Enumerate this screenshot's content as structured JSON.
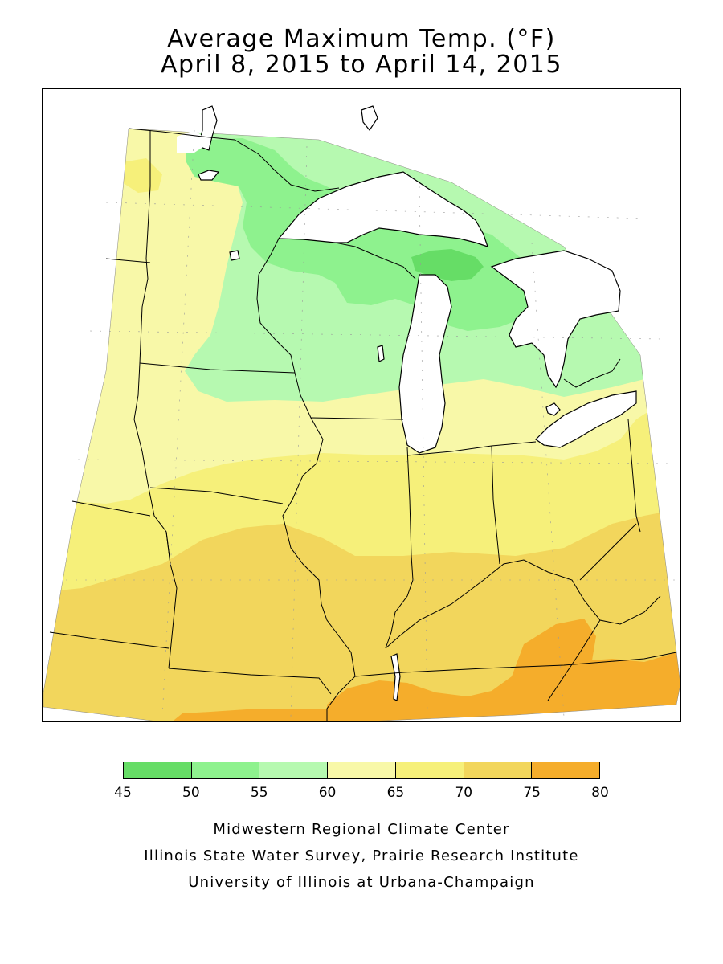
{
  "title": {
    "line1": "Average Maximum Temp. (°F)",
    "line2": "April 8, 2015 to April 14, 2015"
  },
  "legend": {
    "ticks": [
      "45",
      "50",
      "55",
      "60",
      "65",
      "70",
      "75",
      "80"
    ],
    "bins": [
      {
        "range": [
          45,
          50
        ],
        "color": "#66dd66"
      },
      {
        "range": [
          50,
          55
        ],
        "color": "#8ef28e"
      },
      {
        "range": [
          55,
          60
        ],
        "color": "#b6f9b0"
      },
      {
        "range": [
          60,
          65
        ],
        "color": "#f8f8a8"
      },
      {
        "range": [
          65,
          70
        ],
        "color": "#f6f07a"
      },
      {
        "range": [
          70,
          75
        ],
        "color": "#f2d65c"
      },
      {
        "range": [
          75,
          80
        ],
        "color": "#f5ad2b"
      }
    ]
  },
  "map": {
    "region": "Midwest United States",
    "variable": "Average maximum temperature",
    "units": "°F",
    "lake_color": "#ffffff",
    "border_color": "#000000"
  },
  "credits": {
    "line1": "Midwestern Regional Climate Center",
    "line2": "Illinois State Water Survey, Prairie Research Institute",
    "line3": "University of Illinois at Urbana-Champaign"
  }
}
